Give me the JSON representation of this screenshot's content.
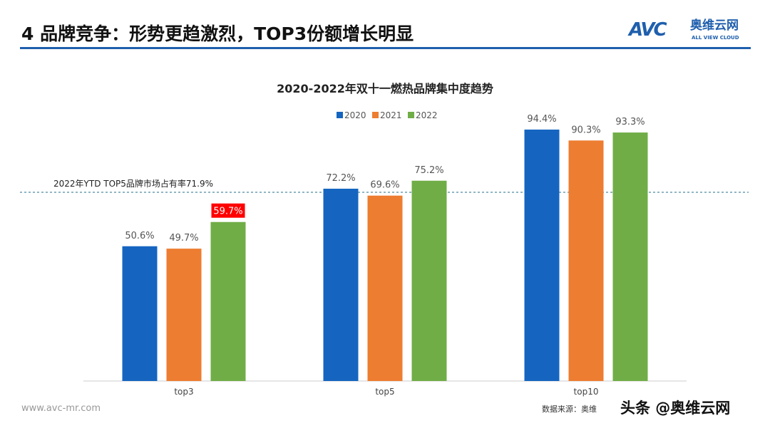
{
  "header": {
    "title": "4 品牌竞争：形势更趋激烈，TOP3份额增长明显",
    "logo_mark": "AVC",
    "logo_cn": "奥维云网",
    "logo_en": "ALL VIEW CLOUD"
  },
  "footer": {
    "url": "www.avc-mr.com",
    "source": "数据来源：奥维",
    "watermark": "头条 @奥维云网"
  },
  "colors": {
    "2020": "#1565c0",
    "2021": "#ed7d31",
    "2022": "#70ad47",
    "highlight": "#ff0000",
    "rule": "#1f5fad"
  },
  "chart_data": {
    "type": "bar",
    "title": "2020-2022年双十一燃热品牌集中度趋势",
    "categories": [
      "top3",
      "top5",
      "top10"
    ],
    "series": [
      {
        "name": "2020",
        "values": [
          50.6,
          72.2,
          94.4
        ]
      },
      {
        "name": "2021",
        "values": [
          49.7,
          69.6,
          90.3
        ]
      },
      {
        "name": "2022",
        "values": [
          59.7,
          75.2,
          93.3
        ]
      }
    ],
    "data_labels": [
      [
        "50.6%",
        "72.2%",
        "94.4%"
      ],
      [
        "49.7%",
        "69.6%",
        "90.3%"
      ],
      [
        "59.7%",
        "75.2%",
        "93.3%"
      ]
    ],
    "highlighted_label": "59.7%",
    "reference_line": {
      "value": 71.9,
      "label": "2022年YTD TOP5品牌市场占有率71.9%"
    },
    "ylim": [
      0,
      100
    ],
    "legend": "top",
    "grid": false
  }
}
